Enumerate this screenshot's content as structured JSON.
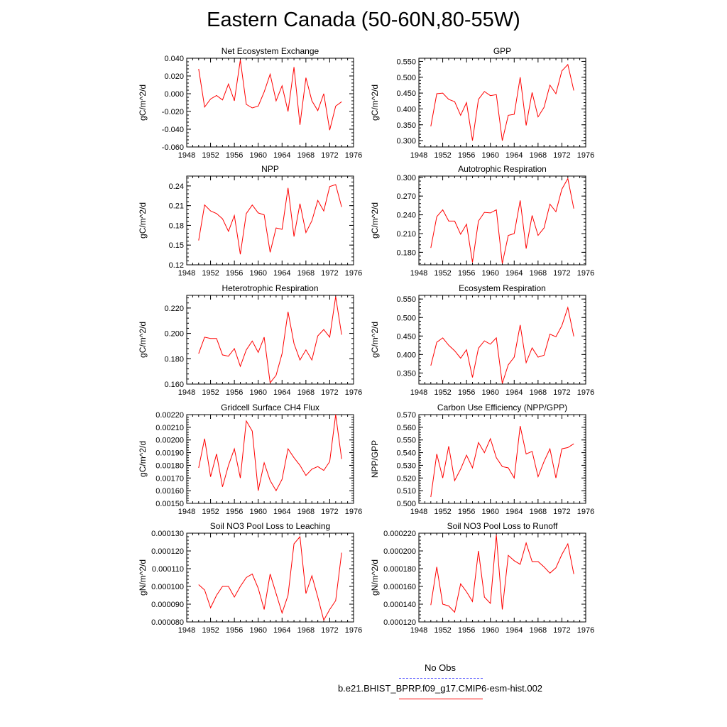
{
  "figure": {
    "title": "Eastern Canada (50-60N,80-55W)"
  },
  "legend": {
    "items": [
      {
        "label": "No Obs",
        "color": "#6666ff",
        "style": "dashed"
      },
      {
        "label": "b.e21.BHIST_BPRP.f09_g17.CMIP6-esm-hist.002",
        "color": "#ff0000",
        "style": "solid"
      }
    ]
  },
  "chart_data": [
    {
      "type": "line",
      "title": "Net Ecosystem Exchange",
      "xlabel": "",
      "ylabel": "gC/m^2/d",
      "xlim": [
        1948,
        1976
      ],
      "xticks": [
        "1948",
        "1952",
        "1956",
        "1960",
        "1964",
        "1968",
        "1972",
        "1976"
      ],
      "ylim": [
        -0.06,
        0.04
      ],
      "yticks": [
        "-0.060",
        "-0.040",
        "-0.020",
        "0.000",
        "0.020",
        "0.040"
      ],
      "grid": false,
      "series": [
        {
          "color": "#ff0000",
          "x": [
            1950,
            1951,
            1952,
            1953,
            1954,
            1955,
            1956,
            1957,
            1958,
            1959,
            1960,
            1961,
            1962,
            1963,
            1964,
            1965,
            1966,
            1967,
            1968,
            1969,
            1970,
            1971,
            1972,
            1973,
            1974
          ],
          "y": [
            0.028,
            -0.015,
            -0.006,
            -0.002,
            -0.007,
            0.011,
            -0.008,
            0.038,
            -0.012,
            -0.016,
            -0.014,
            0.002,
            0.022,
            -0.008,
            0.009,
            -0.02,
            0.03,
            -0.035,
            0.018,
            -0.008,
            -0.019,
            0.0,
            -0.041,
            -0.014,
            -0.009
          ]
        }
      ]
    },
    {
      "type": "line",
      "title": "GPP",
      "xlabel": "",
      "ylabel": "gC/m^2/d",
      "xlim": [
        1948,
        1976
      ],
      "xticks": [
        "1948",
        "1952",
        "1956",
        "1960",
        "1964",
        "1968",
        "1972",
        "1976"
      ],
      "ylim": [
        0.28,
        0.56
      ],
      "yticks": [
        "0.300",
        "0.350",
        "0.400",
        "0.450",
        "0.500",
        "0.550"
      ],
      "grid": false,
      "series": [
        {
          "color": "#ff0000",
          "x": [
            1950,
            1951,
            1952,
            1953,
            1954,
            1955,
            1956,
            1957,
            1958,
            1959,
            1960,
            1961,
            1962,
            1963,
            1964,
            1965,
            1966,
            1967,
            1968,
            1969,
            1970,
            1971,
            1972,
            1973,
            1974
          ],
          "y": [
            0.345,
            0.448,
            0.45,
            0.43,
            0.423,
            0.38,
            0.42,
            0.3,
            0.43,
            0.455,
            0.442,
            0.445,
            0.3,
            0.38,
            0.383,
            0.5,
            0.348,
            0.452,
            0.375,
            0.405,
            0.475,
            0.448,
            0.52,
            0.54,
            0.458
          ]
        }
      ]
    },
    {
      "type": "line",
      "title": "NPP",
      "xlabel": "",
      "ylabel": "gC/m^2/d",
      "xlim": [
        1948,
        1976
      ],
      "xticks": [
        "1948",
        "1952",
        "1956",
        "1960",
        "1964",
        "1968",
        "1972",
        "1976"
      ],
      "ylim": [
        0.12,
        0.255
      ],
      "yticks": [
        "0.12",
        "0.15",
        "0.18",
        "0.21",
        "0.24"
      ],
      "grid": false,
      "series": [
        {
          "color": "#ff0000",
          "x": [
            1950,
            1951,
            1952,
            1953,
            1954,
            1955,
            1956,
            1957,
            1958,
            1959,
            1960,
            1961,
            1962,
            1963,
            1964,
            1965,
            1966,
            1967,
            1968,
            1969,
            1970,
            1971,
            1972,
            1973,
            1974
          ],
          "y": [
            0.157,
            0.211,
            0.202,
            0.198,
            0.19,
            0.171,
            0.195,
            0.136,
            0.198,
            0.211,
            0.199,
            0.196,
            0.139,
            0.176,
            0.174,
            0.237,
            0.163,
            0.213,
            0.169,
            0.187,
            0.218,
            0.202,
            0.239,
            0.242,
            0.208
          ]
        }
      ]
    },
    {
      "type": "line",
      "title": "Autotrophic Respiration",
      "xlabel": "",
      "ylabel": "gC/m^2/d",
      "xlim": [
        1948,
        1976
      ],
      "xticks": [
        "1948",
        "1952",
        "1956",
        "1960",
        "1964",
        "1968",
        "1972",
        "1976"
      ],
      "ylim": [
        0.16,
        0.302
      ],
      "yticks": [
        "0.180",
        "0.210",
        "0.240",
        "0.270",
        "0.300"
      ],
      "grid": false,
      "series": [
        {
          "color": "#ff0000",
          "x": [
            1950,
            1951,
            1952,
            1953,
            1954,
            1955,
            1956,
            1957,
            1958,
            1959,
            1960,
            1961,
            1962,
            1963,
            1964,
            1965,
            1966,
            1967,
            1968,
            1969,
            1970,
            1971,
            1972,
            1973,
            1974
          ],
          "y": [
            0.187,
            0.237,
            0.248,
            0.23,
            0.23,
            0.209,
            0.225,
            0.164,
            0.23,
            0.244,
            0.243,
            0.248,
            0.162,
            0.207,
            0.21,
            0.263,
            0.186,
            0.239,
            0.207,
            0.219,
            0.257,
            0.245,
            0.281,
            0.298,
            0.25
          ]
        }
      ]
    },
    {
      "type": "line",
      "title": "Heterotrophic Respiration",
      "xlabel": "",
      "ylabel": "gC/m^2/d",
      "xlim": [
        1948,
        1976
      ],
      "xticks": [
        "1948",
        "1952",
        "1956",
        "1960",
        "1964",
        "1968",
        "1972",
        "1976"
      ],
      "ylim": [
        0.16,
        0.23
      ],
      "yticks": [
        "0.160",
        "0.180",
        "0.200",
        "0.220"
      ],
      "grid": false,
      "series": [
        {
          "color": "#ff0000",
          "x": [
            1950,
            1951,
            1952,
            1953,
            1954,
            1955,
            1956,
            1957,
            1958,
            1959,
            1960,
            1961,
            1962,
            1963,
            1964,
            1965,
            1966,
            1967,
            1968,
            1969,
            1970,
            1971,
            1972,
            1973,
            1974
          ],
          "y": [
            0.184,
            0.197,
            0.196,
            0.196,
            0.183,
            0.182,
            0.188,
            0.174,
            0.187,
            0.194,
            0.185,
            0.197,
            0.161,
            0.167,
            0.184,
            0.217,
            0.192,
            0.179,
            0.187,
            0.179,
            0.198,
            0.203,
            0.197,
            0.229,
            0.199
          ]
        }
      ]
    },
    {
      "type": "line",
      "title": "Ecosystem Respiration",
      "xlabel": "",
      "ylabel": "gC/m^2/d",
      "xlim": [
        1948,
        1976
      ],
      "xticks": [
        "1948",
        "1952",
        "1956",
        "1960",
        "1964",
        "1968",
        "1972",
        "1976"
      ],
      "ylim": [
        0.32,
        0.56
      ],
      "yticks": [
        "0.350",
        "0.400",
        "0.450",
        "0.500",
        "0.550"
      ],
      "grid": false,
      "series": [
        {
          "color": "#ff0000",
          "x": [
            1950,
            1951,
            1952,
            1953,
            1954,
            1955,
            1956,
            1957,
            1958,
            1959,
            1960,
            1961,
            1962,
            1963,
            1964,
            1965,
            1966,
            1967,
            1968,
            1969,
            1970,
            1971,
            1972,
            1973,
            1974
          ],
          "y": [
            0.37,
            0.433,
            0.445,
            0.425,
            0.41,
            0.39,
            0.413,
            0.338,
            0.417,
            0.437,
            0.428,
            0.445,
            0.322,
            0.372,
            0.393,
            0.48,
            0.378,
            0.418,
            0.393,
            0.398,
            0.455,
            0.448,
            0.478,
            0.527,
            0.449
          ]
        }
      ]
    },
    {
      "type": "line",
      "title": "Gridcell Surface CH4 Flux",
      "xlabel": "",
      "ylabel": "gC/m^2/d",
      "xlim": [
        1948,
        1976
      ],
      "xticks": [
        "1948",
        "1952",
        "1956",
        "1960",
        "1964",
        "1968",
        "1972",
        "1976"
      ],
      "ylim": [
        0.0015,
        0.0022
      ],
      "yticks": [
        "0.00150",
        "0.00160",
        "0.00170",
        "0.00180",
        "0.00190",
        "0.00200",
        "0.00210",
        "0.00220"
      ],
      "grid": false,
      "series": [
        {
          "color": "#ff0000",
          "x": [
            1950,
            1951,
            1952,
            1953,
            1954,
            1955,
            1956,
            1957,
            1958,
            1959,
            1960,
            1961,
            1962,
            1963,
            1964,
            1965,
            1966,
            1967,
            1968,
            1969,
            1970,
            1971,
            1972,
            1973,
            1974
          ],
          "y": [
            0.00178,
            0.00201,
            0.00171,
            0.00189,
            0.00163,
            0.0018,
            0.00193,
            0.0017,
            0.00215,
            0.00207,
            0.0016,
            0.00182,
            0.00168,
            0.0016,
            0.00169,
            0.00193,
            0.00186,
            0.0018,
            0.00172,
            0.00177,
            0.00179,
            0.00176,
            0.00183,
            0.0022,
            0.00185
          ]
        }
      ]
    },
    {
      "type": "line",
      "title": "Carbon Use Efficiency (NPP/GPP)",
      "xlabel": "",
      "ylabel": "NPP/GPP",
      "xlim": [
        1948,
        1976
      ],
      "xticks": [
        "1948",
        "1952",
        "1956",
        "1960",
        "1964",
        "1968",
        "1972",
        "1976"
      ],
      "ylim": [
        0.5,
        0.57
      ],
      "yticks": [
        "0.500",
        "0.510",
        "0.520",
        "0.530",
        "0.540",
        "0.550",
        "0.560",
        "0.570"
      ],
      "grid": false,
      "series": [
        {
          "color": "#ff0000",
          "x": [
            1950,
            1951,
            1952,
            1953,
            1954,
            1955,
            1956,
            1957,
            1958,
            1959,
            1960,
            1961,
            1962,
            1963,
            1964,
            1965,
            1966,
            1967,
            1968,
            1969,
            1970,
            1971,
            1972,
            1973,
            1974
          ],
          "y": [
            0.505,
            0.539,
            0.52,
            0.545,
            0.518,
            0.527,
            0.538,
            0.528,
            0.548,
            0.54,
            0.551,
            0.536,
            0.529,
            0.528,
            0.52,
            0.561,
            0.539,
            0.541,
            0.521,
            0.533,
            0.543,
            0.52,
            0.543,
            0.544,
            0.547
          ]
        }
      ]
    },
    {
      "type": "line",
      "title": "Soil NO3 Pool Loss to Leaching",
      "xlabel": "",
      "ylabel": "gN/m^2/d",
      "xlim": [
        1948,
        1976
      ],
      "xticks": [
        "1948",
        "1952",
        "1956",
        "1960",
        "1964",
        "1968",
        "1972",
        "1976"
      ],
      "ylim": [
        8e-05,
        0.00013
      ],
      "yticks": [
        "0.000080",
        "0.000090",
        "0.000100",
        "0.000110",
        "0.000120",
        "0.000130"
      ],
      "grid": false,
      "series": [
        {
          "color": "#ff0000",
          "x": [
            1950,
            1951,
            1952,
            1953,
            1954,
            1955,
            1956,
            1957,
            1958,
            1959,
            1960,
            1961,
            1962,
            1963,
            1964,
            1965,
            1966,
            1967,
            1968,
            1969,
            1970,
            1971,
            1972,
            1973,
            1974
          ],
          "y": [
            0.000101,
            9.8e-05,
            8.8e-05,
            9.5e-05,
            0.0001,
            0.0001,
            9.4e-05,
            0.0001,
            0.000105,
            0.000107,
            9.9e-05,
            8.7e-05,
            0.000107,
            9.6e-05,
            8.5e-05,
            9.5e-05,
            0.000124,
            0.000128,
            9.6e-05,
            0.000106,
            9.4e-05,
            8.1e-05,
            8.7e-05,
            9.2e-05,
            0.000119
          ]
        }
      ]
    },
    {
      "type": "line",
      "title": "Soil NO3 Pool Loss to Runoff",
      "xlabel": "",
      "ylabel": "gN/m^2/d",
      "xlim": [
        1948,
        1976
      ],
      "xticks": [
        "1948",
        "1952",
        "1956",
        "1960",
        "1964",
        "1968",
        "1972",
        "1976"
      ],
      "ylim": [
        0.00012,
        0.00022
      ],
      "yticks": [
        "0.000120",
        "0.000140",
        "0.000160",
        "0.000180",
        "0.000200",
        "0.000220"
      ],
      "grid": false,
      "series": [
        {
          "color": "#ff0000",
          "x": [
            1950,
            1951,
            1952,
            1953,
            1954,
            1955,
            1956,
            1957,
            1958,
            1959,
            1960,
            1961,
            1962,
            1963,
            1964,
            1965,
            1966,
            1967,
            1968,
            1969,
            1970,
            1971,
            1972,
            1973,
            1974
          ],
          "y": [
            0.000139,
            0.000182,
            0.00014,
            0.000138,
            0.000131,
            0.000163,
            0.000154,
            0.000143,
            0.0002,
            0.000148,
            0.000141,
            0.000218,
            0.000134,
            0.000195,
            0.000189,
            0.000185,
            0.000209,
            0.000188,
            0.000188,
            0.000182,
            0.000175,
            0.000181,
            0.000196,
            0.000208,
            0.000174
          ]
        }
      ]
    }
  ]
}
